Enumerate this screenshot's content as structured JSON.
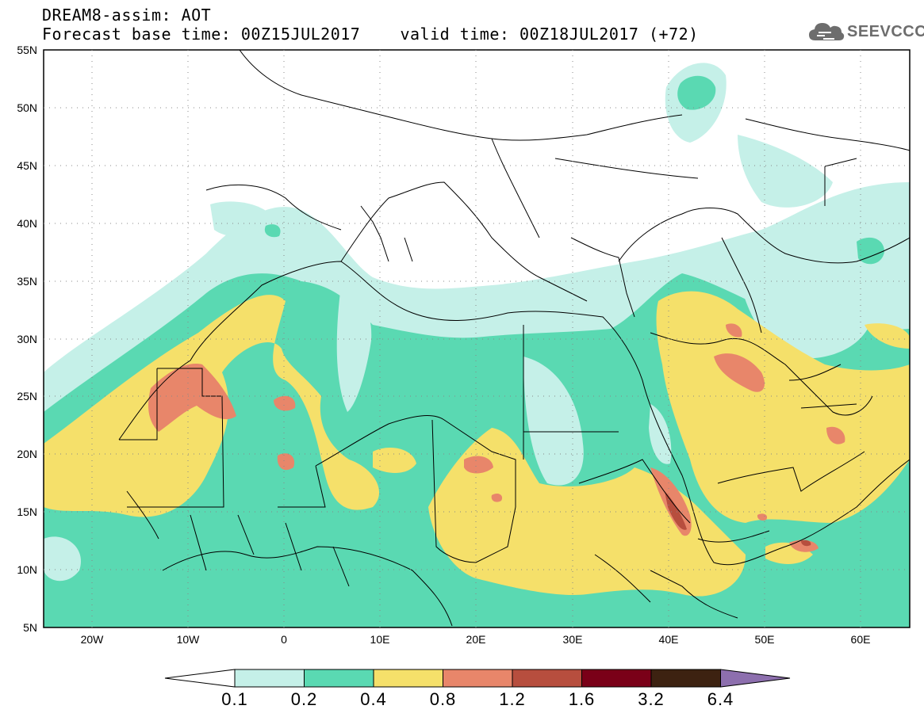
{
  "header": {
    "line1": "DREAM8-assim: AOT",
    "line2": "Forecast base time: 00Z15JUL2017    valid time: 00Z18JUL2017 (+72)"
  },
  "logo": {
    "text": "SEEVCCC",
    "icon": "cloud-icon",
    "color": "#6d6d6d"
  },
  "map": {
    "lat_labels": [
      "55N",
      "50N",
      "45N",
      "40N",
      "35N",
      "30N",
      "25N",
      "20N",
      "15N",
      "10N",
      "5N"
    ],
    "lon_labels": [
      "20W",
      "10W",
      "0",
      "10E",
      "20E",
      "30E",
      "40E",
      "50E",
      "60E"
    ],
    "extent": {
      "lon": [
        -25,
        65
      ],
      "lat": [
        5,
        55
      ]
    }
  },
  "colorbar": {
    "tick_labels": [
      "0.1",
      "0.2",
      "0.4",
      "0.8",
      "1.2",
      "1.6",
      "3.2",
      "6.4"
    ],
    "colors": [
      "#c5f0e8",
      "#5ad9b2",
      "#f5e06a",
      "#e8866a",
      "#b74e3e",
      "#7a0018",
      "#3d2211",
      "#8d6fae"
    ],
    "under_color": "#ffffff"
  }
}
